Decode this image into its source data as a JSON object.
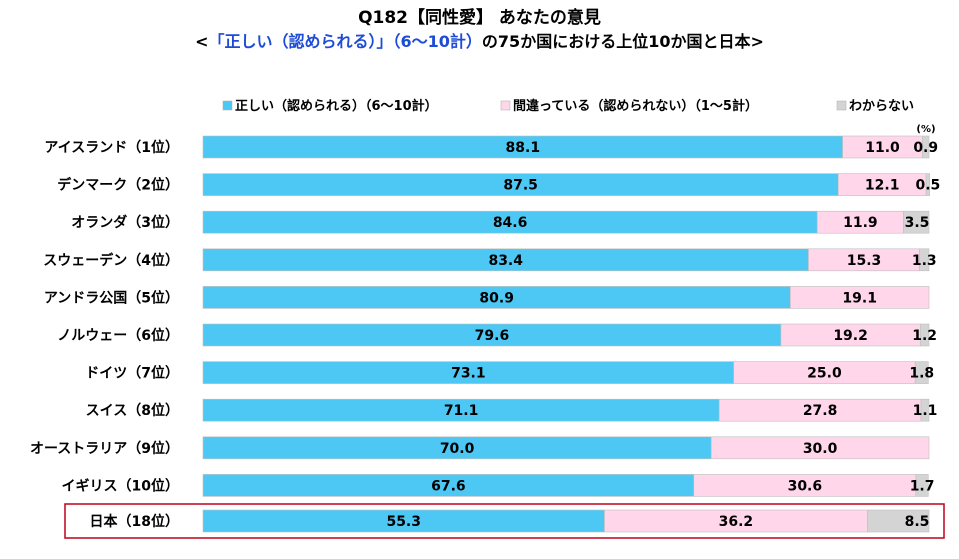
{
  "title": "Q182【同性愛】 あなたの意見",
  "subtitle": {
    "pre": "<",
    "highlight": "「正しい（認められる）」（6～10計）",
    "post": "の75か国における上位10か国と日本>"
  },
  "chart_data": {
    "type": "bar",
    "orientation": "horizontal",
    "stacked": "100%",
    "unit": "(%)",
    "xlim": [
      0,
      100
    ],
    "categories": [
      "アイスランド（1位）",
      "デンマーク（2位）",
      "オランダ（3位）",
      "スウェーデン（4位）",
      "アンドラ公国（5位）",
      "ノルウェー（6位）",
      "ドイツ（7位）",
      "スイス（8位）",
      "オーストラリア（9位）",
      "イギリス（10位）",
      "日本（18位）"
    ],
    "highlight_category": "日本（18位）",
    "series": [
      {
        "name": "正しい（認められる）（6～10計）",
        "color": "#4dc8f5",
        "values": [
          88.1,
          87.5,
          84.6,
          83.4,
          80.9,
          79.6,
          73.1,
          71.1,
          70.0,
          67.6,
          55.3
        ]
      },
      {
        "name": "間違っている（認められない）（1～5計）",
        "color": "#ffd6ea",
        "values": [
          11.0,
          12.1,
          11.9,
          15.3,
          19.1,
          19.2,
          25.0,
          27.8,
          30.0,
          30.6,
          36.2
        ]
      },
      {
        "name": "わからない",
        "color": "#d4d4d4",
        "values": [
          0.9,
          0.5,
          3.5,
          1.3,
          0,
          1.2,
          1.8,
          1.1,
          0,
          1.7,
          8.5
        ]
      }
    ],
    "labels": [
      [
        "88.1",
        "11.0",
        "0.9"
      ],
      [
        "87.5",
        "12.1",
        "0.5"
      ],
      [
        "84.6",
        "11.9",
        "3.5"
      ],
      [
        "83.4",
        "15.3",
        "1.3"
      ],
      [
        "80.9",
        "19.1",
        ""
      ],
      [
        "79.6",
        "19.2",
        "1.2"
      ],
      [
        "73.1",
        "25.0",
        "1.8"
      ],
      [
        "71.1",
        "27.8",
        "1.1"
      ],
      [
        "70.0",
        "30.0",
        ""
      ],
      [
        "67.6",
        "30.6",
        "1.7"
      ],
      [
        "55.3",
        "36.2",
        "8.5"
      ]
    ],
    "legend_position": "top-right",
    "highlight_color": "#c0001a"
  }
}
